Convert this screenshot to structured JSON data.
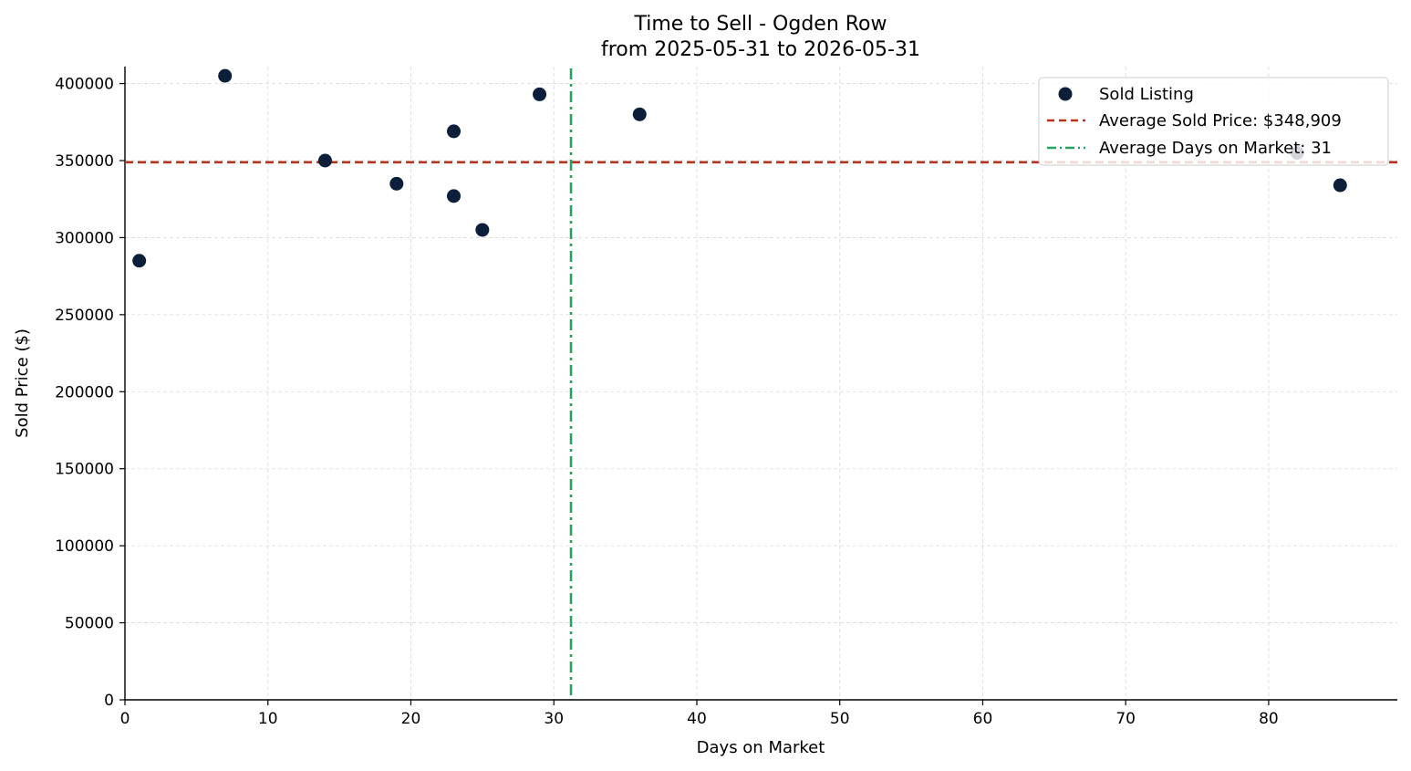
{
  "chart_data": {
    "type": "scatter",
    "title": "Time to Sell - Ogden Row",
    "subtitle": "from 2025-05-31 to 2026-05-31",
    "xlabel": "Days on Market",
    "ylabel": "Sold Price ($)",
    "xlim": [
      0,
      89
    ],
    "ylim": [
      0,
      411000
    ],
    "x_ticks": [
      0,
      10,
      20,
      30,
      40,
      50,
      60,
      70,
      80
    ],
    "y_ticks": [
      0,
      50000,
      100000,
      150000,
      200000,
      250000,
      300000,
      350000,
      400000
    ],
    "grid": true,
    "legend_position": "top-right",
    "series": [
      {
        "name": "Sold Listing",
        "color": "#0b1f3a",
        "points": [
          {
            "x": 1,
            "y": 285000
          },
          {
            "x": 7,
            "y": 405000
          },
          {
            "x": 14,
            "y": 350000
          },
          {
            "x": 19,
            "y": 335000
          },
          {
            "x": 23,
            "y": 369000
          },
          {
            "x": 23,
            "y": 327000
          },
          {
            "x": 25,
            "y": 305000
          },
          {
            "x": 29,
            "y": 393000
          },
          {
            "x": 36,
            "y": 380000
          },
          {
            "x": 82,
            "y": 355000
          },
          {
            "x": 85,
            "y": 334000
          }
        ]
      }
    ],
    "reference_lines": [
      {
        "name": "Average Sold Price: $348,909",
        "orientation": "horizontal",
        "value": 348909,
        "color": "#b8321e",
        "style": "dashed"
      },
      {
        "name": "Average Days on Market: 31",
        "orientation": "vertical",
        "value": 31.2,
        "color": "#27a35f",
        "style": "dash-dot"
      }
    ]
  }
}
